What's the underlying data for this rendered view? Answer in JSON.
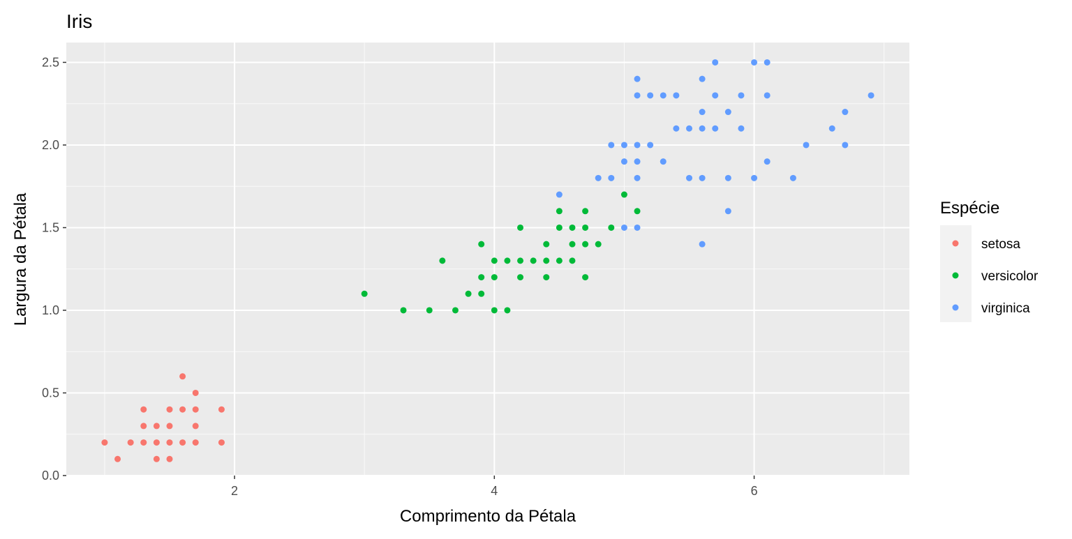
{
  "chart_data": {
    "type": "scatter",
    "title": "Iris",
    "xlabel": "Comprimento da Pétala",
    "ylabel": "Largura da Pétala",
    "xlim": [
      0.705,
      7.195
    ],
    "ylim": [
      0.0,
      2.62
    ],
    "x_ticks": [
      2,
      4,
      6
    ],
    "x_tick_labels": [
      "2",
      "4",
      "6"
    ],
    "x_minor_ticks": [
      1,
      3,
      5,
      7
    ],
    "y_ticks": [
      0.0,
      0.5,
      1.0,
      1.5,
      2.0,
      2.5
    ],
    "y_tick_labels": [
      "0.0",
      "0.5",
      "1.0",
      "1.5",
      "2.0",
      "2.5"
    ],
    "y_minor_ticks": [
      0.25,
      0.75,
      1.25,
      1.75,
      2.25
    ],
    "grid": true,
    "background": "#ebebeb",
    "legend": {
      "title": "Espécie",
      "placement": "right"
    },
    "series": [
      {
        "name": "setosa",
        "color": "#f8766d",
        "points": [
          [
            1.0,
            0.2
          ],
          [
            1.1,
            0.1
          ],
          [
            1.2,
            0.2
          ],
          [
            1.3,
            0.2
          ],
          [
            1.3,
            0.3
          ],
          [
            1.3,
            0.4
          ],
          [
            1.4,
            0.1
          ],
          [
            1.4,
            0.2
          ],
          [
            1.4,
            0.3
          ],
          [
            1.5,
            0.1
          ],
          [
            1.5,
            0.2
          ],
          [
            1.5,
            0.3
          ],
          [
            1.5,
            0.4
          ],
          [
            1.6,
            0.2
          ],
          [
            1.6,
            0.4
          ],
          [
            1.6,
            0.6
          ],
          [
            1.7,
            0.2
          ],
          [
            1.7,
            0.3
          ],
          [
            1.7,
            0.4
          ],
          [
            1.7,
            0.5
          ],
          [
            1.9,
            0.2
          ],
          [
            1.9,
            0.4
          ]
        ]
      },
      {
        "name": "versicolor",
        "color": "#00ba38",
        "points": [
          [
            3.0,
            1.1
          ],
          [
            3.3,
            1.0
          ],
          [
            3.5,
            1.0
          ],
          [
            3.6,
            1.3
          ],
          [
            3.7,
            1.0
          ],
          [
            3.8,
            1.1
          ],
          [
            3.9,
            1.1
          ],
          [
            3.9,
            1.2
          ],
          [
            3.9,
            1.4
          ],
          [
            4.0,
            1.0
          ],
          [
            4.0,
            1.2
          ],
          [
            4.0,
            1.3
          ],
          [
            4.1,
            1.0
          ],
          [
            4.1,
            1.3
          ],
          [
            4.2,
            1.2
          ],
          [
            4.2,
            1.3
          ],
          [
            4.2,
            1.5
          ],
          [
            4.3,
            1.3
          ],
          [
            4.4,
            1.2
          ],
          [
            4.4,
            1.3
          ],
          [
            4.4,
            1.4
          ],
          [
            4.5,
            1.3
          ],
          [
            4.5,
            1.5
          ],
          [
            4.5,
            1.6
          ],
          [
            4.6,
            1.3
          ],
          [
            4.6,
            1.4
          ],
          [
            4.6,
            1.5
          ],
          [
            4.7,
            1.2
          ],
          [
            4.7,
            1.4
          ],
          [
            4.7,
            1.5
          ],
          [
            4.7,
            1.6
          ],
          [
            4.8,
            1.4
          ],
          [
            4.9,
            1.5
          ],
          [
            5.0,
            1.7
          ],
          [
            5.1,
            1.6
          ]
        ]
      },
      {
        "name": "virginica",
        "color": "#619cff",
        "points": [
          [
            4.5,
            1.7
          ],
          [
            4.8,
            1.8
          ],
          [
            4.9,
            1.8
          ],
          [
            4.9,
            2.0
          ],
          [
            5.0,
            1.5
          ],
          [
            5.0,
            1.9
          ],
          [
            5.0,
            2.0
          ],
          [
            5.1,
            1.5
          ],
          [
            5.1,
            1.8
          ],
          [
            5.1,
            1.9
          ],
          [
            5.1,
            2.0
          ],
          [
            5.1,
            2.3
          ],
          [
            5.1,
            2.4
          ],
          [
            5.2,
            2.0
          ],
          [
            5.2,
            2.3
          ],
          [
            5.3,
            1.9
          ],
          [
            5.3,
            2.3
          ],
          [
            5.4,
            2.1
          ],
          [
            5.4,
            2.3
          ],
          [
            5.5,
            1.8
          ],
          [
            5.5,
            2.1
          ],
          [
            5.6,
            1.4
          ],
          [
            5.6,
            1.8
          ],
          [
            5.6,
            2.1
          ],
          [
            5.6,
            2.2
          ],
          [
            5.6,
            2.4
          ],
          [
            5.7,
            2.1
          ],
          [
            5.7,
            2.3
          ],
          [
            5.7,
            2.5
          ],
          [
            5.8,
            1.6
          ],
          [
            5.8,
            1.8
          ],
          [
            5.8,
            2.2
          ],
          [
            5.9,
            2.1
          ],
          [
            5.9,
            2.3
          ],
          [
            6.0,
            1.8
          ],
          [
            6.0,
            2.5
          ],
          [
            6.1,
            1.9
          ],
          [
            6.1,
            2.3
          ],
          [
            6.1,
            2.5
          ],
          [
            6.3,
            1.8
          ],
          [
            6.4,
            2.0
          ],
          [
            6.6,
            2.1
          ],
          [
            6.7,
            2.0
          ],
          [
            6.7,
            2.2
          ],
          [
            6.9,
            2.3
          ]
        ]
      }
    ]
  }
}
